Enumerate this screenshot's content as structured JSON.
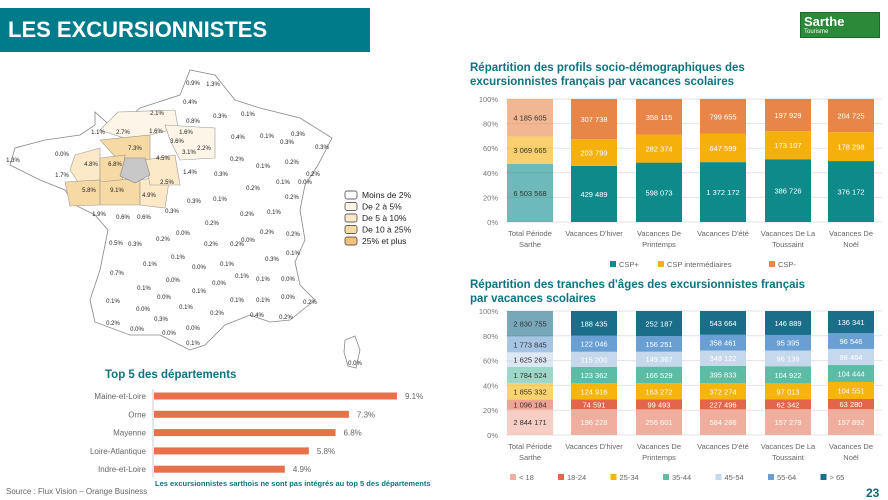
{
  "header": {
    "title": "LES EXCURSIONNISTES FRANÇAIS"
  },
  "logo": {
    "text": "Sarthe",
    "sub": "Tourisme"
  },
  "page_number": "23",
  "source": "Source : Flux Vision – Orange Business",
  "map": {
    "legend": [
      "Moins de 2%",
      "De 2 à 5%",
      "De 5 à 10%",
      "De 10 à 25%",
      "25% et plus"
    ],
    "legend_colors": [
      "#ffffff",
      "#fdf6e8",
      "#fbe9c8",
      "#f7d9a4",
      "#f2c27a"
    ],
    "labels": [
      "0.9%",
      "1.3%",
      "0.4%",
      "2.1%",
      "0.8%",
      "0.3%",
      "0.1%",
      "1.1%",
      "2.7%",
      "1.6%",
      "1.6%",
      "3.6%",
      "2.2%",
      "3.1%",
      "0.4%",
      "0.1%",
      "0.3%",
      "0.3%",
      "0.3%",
      "0.0%",
      "7.3%",
      "4.5%",
      "1.3%",
      "4.8%",
      "6.8%",
      "0.2%",
      "0.1%",
      "0.2%",
      "1.7%",
      "1.4%",
      "0.3%",
      "0.2%",
      "0.1%",
      "0.0%",
      "2.5%",
      "0.2%",
      "5.8%",
      "9.1%",
      "4.9%",
      "0.3%",
      "0.1%",
      "0.2%",
      "0.3%",
      "0.1%",
      "0.2%",
      "1.9%",
      "0.6%",
      "0.6%",
      "0.2%",
      "0.0%",
      "0.2%",
      "0.2%",
      "0.2%",
      "0.0%",
      "0.5%",
      "0.3%",
      "0.2%",
      "0.2%",
      "0.1%",
      "0.1%",
      "0.3%",
      "0.1%",
      "0.0%",
      "0.1%",
      "0.7%",
      "0.1%",
      "0.1%",
      "0.0%",
      "0.0%",
      "0.0%",
      "0.1%",
      "0.1%",
      "0.1%",
      "0.0%",
      "0.0%",
      "0.2%",
      "0.1%",
      "0.1%",
      "0.0%",
      "0.1%",
      "0.2%",
      "0.4%",
      "0.2%",
      "0.2%",
      "0.3%",
      "0.0%",
      "0.0%",
      "0.0%",
      "0.1%",
      "0.0%"
    ]
  },
  "chart_data": [
    {
      "type": "bar",
      "stacked": "percent",
      "title": "Répartition des profils socio-démographiques des excursionnistes français par vacances scolaires",
      "categories": [
        "Total Période Sarthe",
        "Vacances D'hiver",
        "Vacances De Printemps",
        "Vacances D'été",
        "Vacances De La Toussaint",
        "Vacances De Noël"
      ],
      "category_lines": [
        [
          "Total Période",
          "Sarthe"
        ],
        [
          "Vacances D'hiver",
          ""
        ],
        [
          "Vacances De",
          "Printemps"
        ],
        [
          "Vacances D'été",
          ""
        ],
        [
          "Vacances De La",
          "Toussaint"
        ],
        [
          "Vacances De",
          "Noël"
        ]
      ],
      "yticks": [
        "0%",
        "20%",
        "40%",
        "60%",
        "80%",
        "100%"
      ],
      "ylim": [
        0,
        100
      ],
      "legend": "bottom",
      "series": [
        {
          "name": "CSP+",
          "color": "#0e8a8a",
          "values": [
            6503568,
            429489,
            598073,
            1372172,
            386726,
            376172
          ],
          "labels": [
            "6 503 568",
            "429 489",
            "598 073",
            "1 372 172",
            "386 726",
            "376 172"
          ]
        },
        {
          "name": "CSP intermédiaires",
          "color": "#f5b00c",
          "values": [
            3069665,
            203799,
            282374,
            647599,
            173107,
            178298
          ],
          "labels": [
            "3 069 665",
            "203 799",
            "282 374",
            "647 599",
            "173 107",
            "178 298"
          ]
        },
        {
          "name": "CSP-",
          "color": "#e8864a",
          "values": [
            4185605,
            307738,
            358115,
            799655,
            197929,
            204725
          ],
          "labels": [
            "4 185 605",
            "307 738",
            "358 115",
            "799 655",
            "197 929",
            "204 725"
          ]
        }
      ]
    },
    {
      "type": "bar",
      "stacked": "percent",
      "title": "Répartition des tranches d'âges des excursionnistes français par vacances scolaires",
      "categories": [
        "Total Période Sarthe",
        "Vacances D'hiver",
        "Vacances De Printemps",
        "Vacances D'été",
        "Vacances De La Toussaint",
        "Vacances De Noël"
      ],
      "category_lines": [
        [
          "Total Période",
          "Sarthe"
        ],
        [
          "Vacances D'hiver",
          ""
        ],
        [
          "Vacances De",
          "Printemps"
        ],
        [
          "Vacances D'été",
          ""
        ],
        [
          "Vacances De La",
          "Toussaint"
        ],
        [
          "Vacances De",
          "Noël"
        ]
      ],
      "yticks": [
        "0%",
        "20%",
        "40%",
        "60%",
        "80%",
        "100%"
      ],
      "ylim": [
        0,
        100
      ],
      "legend": "bottom",
      "series": [
        {
          "name": "< 18",
          "color": "#f0ae9e",
          "values": [
            2844171,
            196228,
            256601,
            584286,
            157279,
            157892
          ],
          "labels": [
            "2 844 171",
            "196 228",
            "256 601",
            "584 286",
            "157 279",
            "157 892"
          ]
        },
        {
          "name": "18-24",
          "color": "#e4664a",
          "values": [
            1096184,
            74591,
            99493,
            227496,
            62342,
            63280
          ],
          "labels": [
            "1 096 184",
            "74 591",
            "99 493",
            "227 496",
            "62 342",
            "63 280"
          ]
        },
        {
          "name": "25-34",
          "color": "#f5b50c",
          "values": [
            1855332,
            124916,
            163272,
            372274,
            97013,
            104551
          ],
          "labels": [
            "1 855 332",
            "124 916",
            "163 272",
            "372 274",
            "97 013",
            "104 551"
          ]
        },
        {
          "name": "35-44",
          "color": "#5cbca6",
          "values": [
            1784524,
            123362,
            166529,
            395833,
            104922,
            104444
          ],
          "labels": [
            "1 784 524",
            "123 362",
            "166 529",
            "395 833",
            "104 922",
            "104 444"
          ]
        },
        {
          "name": "45-54",
          "color": "#c6d9ec",
          "values": [
            1625263,
            115200,
            149367,
            348122,
            96139,
            98464
          ],
          "labels": [
            "1 625 263",
            "115 200",
            "149 367",
            "348 122",
            "96 139",
            "98 464"
          ]
        },
        {
          "name": "55-64",
          "color": "#6a9fd4",
          "values": [
            1773845,
            122046,
            156251,
            358461,
            95395,
            96546
          ],
          "labels": [
            "1 773 845",
            "122 046",
            "156 251",
            "358 461",
            "95 395",
            "96 546"
          ]
        },
        {
          "name": "> 65",
          "color": "#1a6e8a",
          "values": [
            2830755,
            188435,
            252187,
            543664,
            146889,
            136341
          ],
          "labels": [
            "2 830 755",
            "188 435",
            "252 187",
            "543 664",
            "146 889",
            "136 341"
          ]
        }
      ]
    },
    {
      "type": "bar",
      "orientation": "horizontal",
      "title": "Top 5 des départements",
      "categories": [
        "Maine-et-Loire",
        "Orne",
        "Mayenne",
        "Loire-Atlantique",
        "Indre-et-Loire"
      ],
      "values": [
        9.1,
        7.3,
        6.8,
        5.8,
        4.9
      ],
      "labels": [
        "9.1%",
        "7.3%",
        "6.8%",
        "5.8%",
        "4.9%"
      ],
      "color": "#e8704a",
      "note": "Les excursionnistes sarthois ne sont pas intégrés au top 5 des départements"
    }
  ]
}
